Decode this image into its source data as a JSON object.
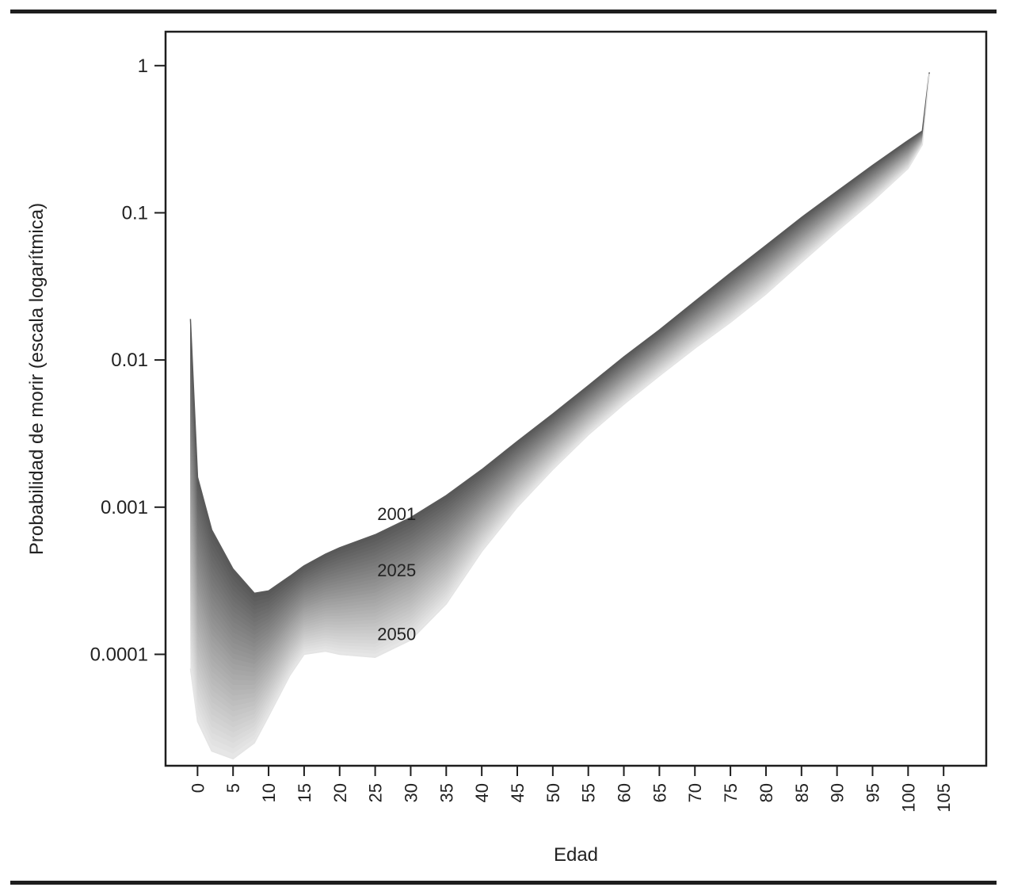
{
  "chart_data": {
    "type": "area",
    "title": "",
    "xlabel": "Edad",
    "ylabel": "Probabilidad de morir (escala logarítmica)",
    "y_scale": "log",
    "xlim": [
      -4.5,
      111
    ],
    "ylim": [
      1.75e-05,
      1.7
    ],
    "x_ticks": [
      0,
      5,
      10,
      15,
      20,
      25,
      30,
      35,
      40,
      45,
      50,
      55,
      60,
      65,
      70,
      75,
      80,
      85,
      90,
      95,
      100,
      105
    ],
    "x_tick_labels": [
      "0",
      "5",
      "10",
      "15",
      "20",
      "25",
      "30",
      "35",
      "40",
      "45",
      "50",
      "55",
      "60",
      "65",
      "70",
      "75",
      "80",
      "85",
      "90",
      "95",
      "100",
      "105"
    ],
    "y_ticks": [
      0.0001,
      0.001,
      0.01,
      0.1,
      1
    ],
    "y_tick_labels": [
      "0.0001",
      "0.001",
      "0.01",
      "0.1",
      "1"
    ],
    "grid": false,
    "legend": "none",
    "color_gradient": {
      "darkest": "#555555",
      "lightest": "#e6e6e6"
    },
    "series": [
      {
        "name": "2001",
        "color": "#5a5a5a",
        "x": [
          -1,
          0,
          2,
          5,
          8,
          10,
          13,
          15,
          18,
          20,
          25,
          30,
          35,
          40,
          45,
          50,
          55,
          60,
          65,
          70,
          75,
          80,
          85,
          90,
          95,
          100,
          102,
          103
        ],
        "y": [
          0.019,
          0.0016,
          0.0007,
          0.00038,
          0.00026,
          0.00027,
          0.00034,
          0.0004,
          0.00048,
          0.00053,
          0.00065,
          0.00085,
          0.0012,
          0.0018,
          0.0028,
          0.0043,
          0.0067,
          0.0105,
          0.016,
          0.025,
          0.039,
          0.06,
          0.093,
          0.14,
          0.21,
          0.31,
          0.36,
          0.9
        ]
      },
      {
        "name": "2050",
        "color": "#e4e4e4",
        "x": [
          -1,
          0,
          2,
          5,
          8,
          10,
          13,
          15,
          18,
          20,
          25,
          30,
          35,
          40,
          45,
          50,
          55,
          60,
          65,
          70,
          75,
          80,
          85,
          90,
          95,
          100,
          102,
          103
        ],
        "y": [
          8e-05,
          3.5e-05,
          2.2e-05,
          1.95e-05,
          2.5e-05,
          3.8e-05,
          7.2e-05,
          0.0001,
          0.000105,
          0.0001,
          9.55e-05,
          0.000125,
          0.00022,
          0.0005,
          0.001,
          0.0018,
          0.0031,
          0.005,
          0.0078,
          0.012,
          0.018,
          0.028,
          0.046,
          0.075,
          0.12,
          0.2,
          0.29,
          0.88
        ]
      }
    ],
    "annotations": [
      {
        "text": "2001",
        "x": 25.3,
        "y": 0.00082
      },
      {
        "text": "2025",
        "x": 25.3,
        "y": 0.00034
      },
      {
        "text": "2050",
        "x": 25.3,
        "y": 0.000125
      }
    ]
  }
}
